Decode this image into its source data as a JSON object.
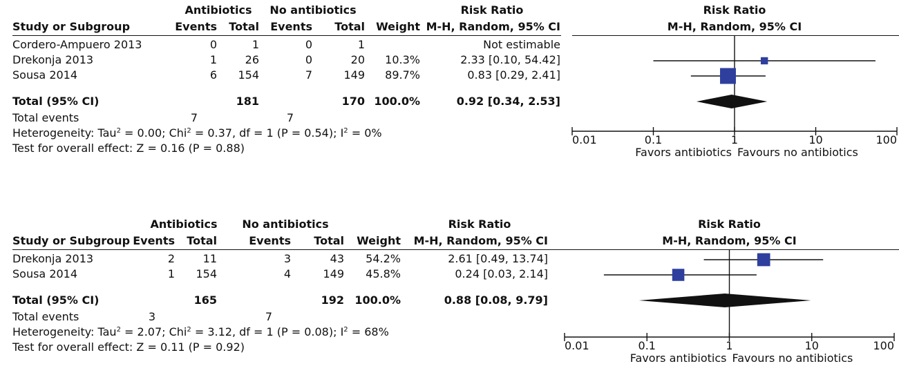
{
  "headers": {
    "study": "Study or Subgroup",
    "group1": "Antibiotics",
    "group2": "No antibiotics",
    "events": "Events",
    "total": "Total",
    "weight": "Weight",
    "rr_title": "Risk Ratio",
    "rr_method": "M-H, Random, 95% CI"
  },
  "chart_data": [
    {
      "type": "forest",
      "x_scale": "log",
      "xlim": [
        0.01,
        100
      ],
      "ticks": [
        "0.01",
        "0.1",
        "1",
        "10",
        "100"
      ],
      "favors_left": "Favors antibiotics",
      "favors_right": "Favours no antibiotics",
      "studies": [
        {
          "name": "Cordero-Ampuero 2013",
          "e1": "0",
          "t1": "1",
          "e2": "0",
          "t2": "1",
          "weight": "",
          "ci_text": "Not estimable",
          "rr": null,
          "lo": null,
          "hi": null,
          "w": 0
        },
        {
          "name": "Drekonja 2013",
          "e1": "1",
          "t1": "26",
          "e2": "0",
          "t2": "20",
          "weight": "10.3%",
          "ci_text": "2.33 [0.10, 54.42]",
          "rr": 2.33,
          "lo": 0.1,
          "hi": 54.42,
          "w": 10.3
        },
        {
          "name": "Sousa 2014",
          "e1": "6",
          "t1": "154",
          "e2": "7",
          "t2": "149",
          "weight": "89.7%",
          "ci_text": "0.83 [0.29, 2.41]",
          "rr": 0.83,
          "lo": 0.29,
          "hi": 2.41,
          "w": 89.7
        }
      ],
      "total": {
        "label": "Total (95% CI)",
        "t1": "181",
        "t2": "170",
        "weight": "100.0%",
        "ci_text": "0.92 [0.34, 2.53]",
        "rr": 0.92,
        "lo": 0.34,
        "hi": 2.53
      },
      "total_events": {
        "label": "Total events",
        "e1": "7",
        "e2": "7"
      },
      "heterogeneity": {
        "p1": "Heterogeneity: Tau",
        "p2": " = 0.00; Chi",
        "p3": " = 0.37, df = 1 (P = 0.54); I",
        "p4": " = 0%"
      },
      "overall_effect": "Test for overall effect: Z = 0.16 (P = 0.88)"
    },
    {
      "type": "forest",
      "x_scale": "log",
      "xlim": [
        0.01,
        100
      ],
      "ticks": [
        "0.01",
        "0.1",
        "1",
        "10",
        "100"
      ],
      "favors_left": "Favors antibiotics",
      "favors_right": "Favours no antibiotics",
      "studies": [
        {
          "name": "Drekonja 2013",
          "e1": "2",
          "t1": "11",
          "e2": "3",
          "t2": "43",
          "weight": "54.2%",
          "ci_text": "2.61 [0.49, 13.74]",
          "rr": 2.61,
          "lo": 0.49,
          "hi": 13.74,
          "w": 54.2
        },
        {
          "name": "Sousa 2014",
          "e1": "1",
          "t1": "154",
          "e2": "4",
          "t2": "149",
          "weight": "45.8%",
          "ci_text": "0.24 [0.03, 2.14]",
          "rr": 0.24,
          "lo": 0.03,
          "hi": 2.14,
          "w": 45.8
        }
      ],
      "total": {
        "label": "Total (95% CI)",
        "t1": "165",
        "t2": "192",
        "weight": "100.0%",
        "ci_text": "0.88 [0.08, 9.79]",
        "rr": 0.88,
        "lo": 0.08,
        "hi": 9.79
      },
      "total_events": {
        "label": "Total events",
        "e1": "3",
        "e2": "7"
      },
      "heterogeneity": {
        "p1": "Heterogeneity: Tau",
        "p2": " = 2.07; Chi",
        "p3": " = 3.12, df = 1 (P = 0.08); I",
        "p4": " = 68%"
      },
      "overall_effect": "Test for overall effect: Z = 0.11 (P = 0.92)"
    }
  ],
  "colors": {
    "marker": "#2e3f9e",
    "diamond": "#111111",
    "line": "#111111"
  }
}
